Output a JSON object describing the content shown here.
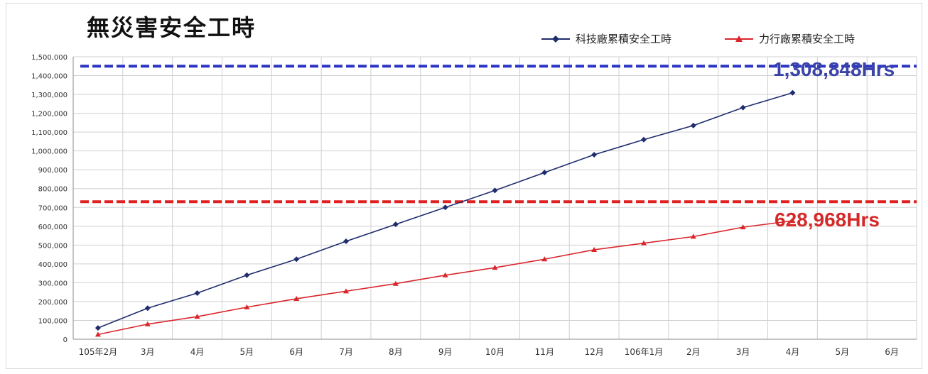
{
  "colors": {
    "series1": "#1f2d6e",
    "series2": "#d9262c",
    "dash_blue": "#2b35c4",
    "dash_red": "#e02020",
    "grid": "#d0d0d0"
  },
  "title": "無災害安全工時",
  "legend": [
    {
      "label": "科技廠累積安全工時",
      "color": "#1f2d6e",
      "marker": "diamond"
    },
    {
      "label": "力行廠累積安全工時",
      "color": "#d9262c",
      "marker": "triangle"
    }
  ],
  "callouts": {
    "series1": "1,308,848Hrs",
    "series2": "628,968Hrs"
  },
  "chart_data": {
    "type": "line",
    "title": "無災害安全工時",
    "categories": [
      "105年2月",
      "3月",
      "4月",
      "5月",
      "6月",
      "7月",
      "8月",
      "9月",
      "10月",
      "11月",
      "12月",
      "106年1月",
      "2月",
      "3月",
      "4月",
      "5月",
      "6月"
    ],
    "ylim": [
      0,
      1500000
    ],
    "yticks": [
      "0",
      "100,000",
      "200,000",
      "300,000",
      "400,000",
      "500,000",
      "600,000",
      "700,000",
      "800,000",
      "900,000",
      "1,000,000",
      "1,100,000",
      "1,200,000",
      "1,300,000",
      "1,400,000",
      "1,500,000"
    ],
    "grid": true,
    "legend_position": "top-right",
    "series": [
      {
        "name": "科技廠累積安全工時",
        "values": [
          60000,
          165000,
          245000,
          340000,
          425000,
          520000,
          610000,
          700000,
          790000,
          885000,
          980000,
          1060000,
          1135000,
          1230000,
          1308848,
          null,
          null
        ]
      },
      {
        "name": "力行廠累積安全工時",
        "values": [
          25000,
          80000,
          120000,
          170000,
          215000,
          255000,
          295000,
          340000,
          380000,
          425000,
          475000,
          510000,
          545000,
          595000,
          628968,
          null,
          null
        ]
      }
    ],
    "reference_lines": [
      {
        "value": 1450000,
        "color": "#2b35c4"
      },
      {
        "value": 730000,
        "color": "#e02020"
      }
    ]
  }
}
